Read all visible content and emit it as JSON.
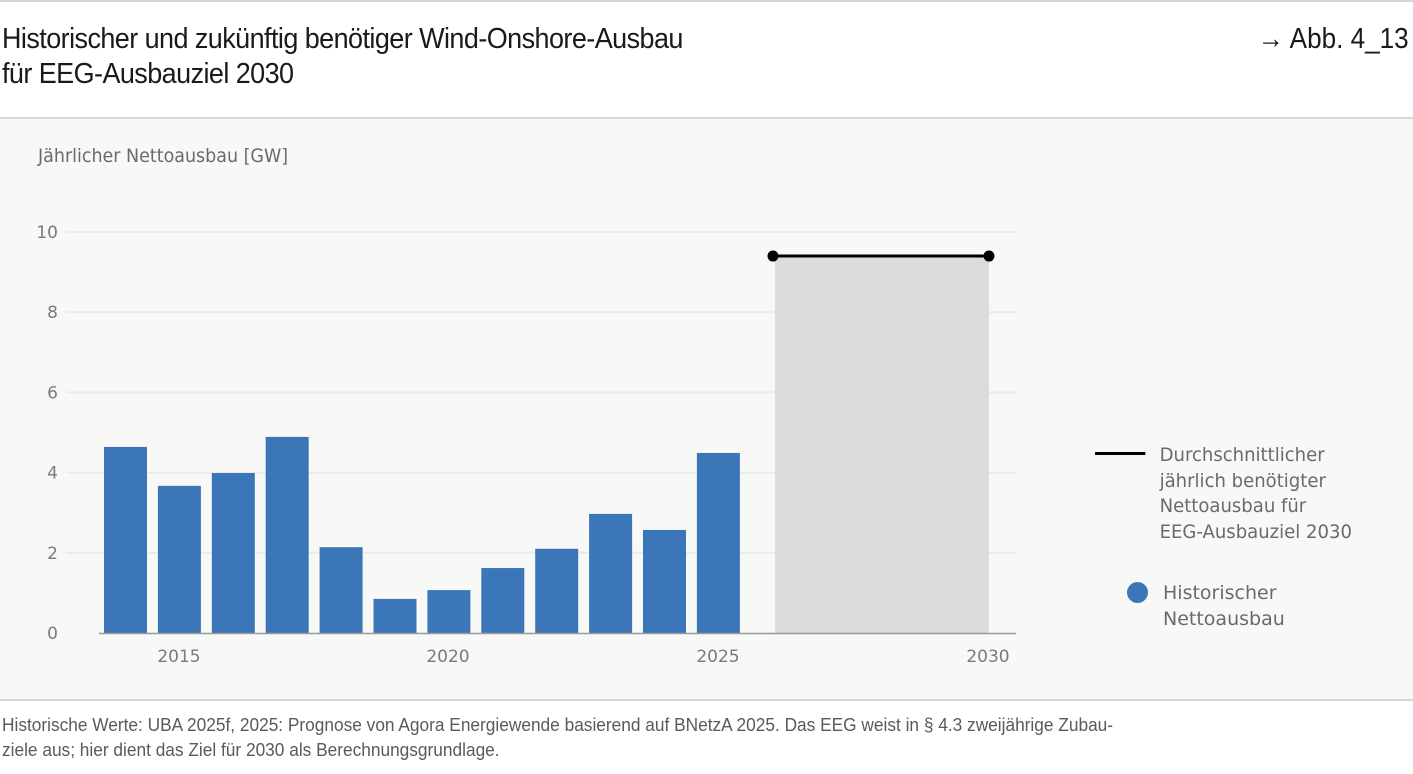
{
  "header": {
    "title_line1": "Historischer und zukünftig benötiger Wind-Onshore-Ausbau",
    "title_line2": "für EEG-Ausbauziel 2030",
    "figure_ref": "→ Abb. 4_13"
  },
  "colors": {
    "bar": "#3b77b8",
    "target_area": "#dcdcdc",
    "target_line": "#000000",
    "panel_bg": "#f8f8f7",
    "grid": "#ebebea",
    "axis_text": "#7a7a7a"
  },
  "legend": {
    "target_label_lines": [
      "Durchschnittlicher",
      "jährlich benötigter",
      "Nettoausbau für",
      "EEG-Ausbauziel 2030"
    ],
    "historic_label_lines": [
      "Historischer",
      "Nettoausbau"
    ]
  },
  "footnote": {
    "line1": "Historische Werte: UBA 2025f, 2025: Prognose von Agora Energiewende basierend auf BNetzA 2025. Das EEG weist in § 4.3 zweijährige Zubau-",
    "line2": "ziele aus; hier dient das Ziel für 2030 als Berechnungsgrundlage."
  },
  "chart_data": {
    "type": "bar",
    "title": "Historischer und zukünftig benötiger Wind-Onshore-Ausbau für EEG-Ausbauziel 2030",
    "xlabel": "",
    "ylabel": "Jährlicher Nettoausbau [GW]",
    "ylim": [
      0,
      10
    ],
    "yticks": [
      0,
      2,
      4,
      6,
      8,
      10
    ],
    "xticks": [
      "2015",
      "2020",
      "2025",
      "2030"
    ],
    "grid": true,
    "legend_position": "right",
    "categories": [
      "2014",
      "2015",
      "2016",
      "2017",
      "2018",
      "2019",
      "2020",
      "2021",
      "2022",
      "2023",
      "2024",
      "2025"
    ],
    "series": [
      {
        "name": "Historischer Nettoausbau",
        "type": "bar",
        "values": [
          4.64,
          3.67,
          3.99,
          4.89,
          2.14,
          0.85,
          1.07,
          1.62,
          2.1,
          2.97,
          2.57,
          4.49
        ]
      },
      {
        "name": "Durchschnittlicher jährlich benötigter Nettoausbau für EEG-Ausbauziel 2030",
        "type": "line",
        "x": [
          "2026",
          "2030"
        ],
        "values": [
          9.4,
          9.4
        ],
        "shaded_area": {
          "from": "2026",
          "to": "2030",
          "height": 9.4
        }
      }
    ]
  }
}
